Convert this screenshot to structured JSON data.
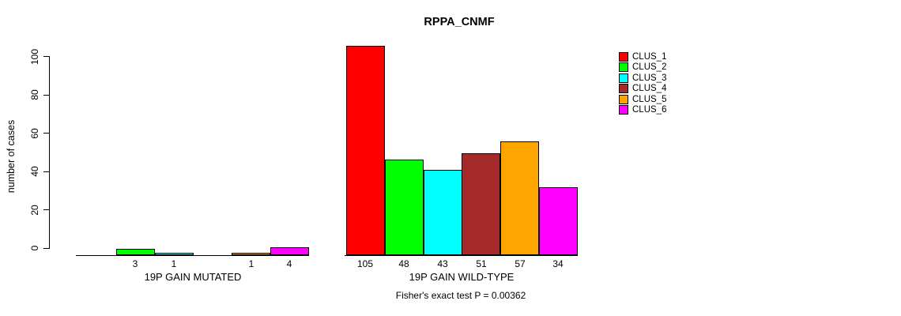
{
  "chart_data": {
    "type": "bar",
    "title": "RPPA_CNMF",
    "ylabel": "number of cases",
    "xlabel": "",
    "ylim": [
      0,
      105
    ],
    "yticks": [
      0,
      20,
      40,
      60,
      80,
      100
    ],
    "grid": false,
    "legend_position": "right-outside",
    "categories": [
      "19P GAIN MUTATED",
      "19P GAIN WILD-TYPE"
    ],
    "series": [
      {
        "name": "CLUS_1",
        "color": "#FF0000",
        "values": [
          0,
          105
        ]
      },
      {
        "name": "CLUS_2",
        "color": "#00FF00",
        "values": [
          3,
          48
        ]
      },
      {
        "name": "CLUS_3",
        "color": "#00FFFF",
        "values": [
          1,
          43
        ]
      },
      {
        "name": "CLUS_4",
        "color": "#A52A2A",
        "values": [
          0,
          51
        ]
      },
      {
        "name": "CLUS_5",
        "color": "#FFA500",
        "values": [
          1,
          57
        ]
      },
      {
        "name": "CLUS_6",
        "color": "#FF00FF",
        "values": [
          4,
          34
        ]
      }
    ],
    "bar_count_labels": [
      [
        "",
        "3",
        "1",
        "",
        "1",
        "4"
      ],
      [
        "105",
        "48",
        "43",
        "51",
        "57",
        "34"
      ]
    ],
    "annotation": "Fisher's exact test P = 0.00362"
  }
}
